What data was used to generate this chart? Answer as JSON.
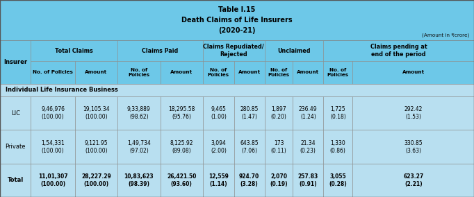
{
  "title_line1": "Table I.15",
  "title_line2": "Death Claims of Life Insurers",
  "title_line3": "(2020-21)",
  "amount_note": "(Amount in ₹crore)",
  "header_bg": "#6DC8E8",
  "light_bg": "#B8DFF0",
  "white_bg": "#FFFFFF",
  "section_header": "Individual Life Insurance Business",
  "rows": [
    {
      "insurer": "LIC",
      "bold": false,
      "values": [
        "9,46,976\n(100.00)",
        "19,105.34\n(100.00)",
        "9,33,889\n(98.62)",
        "18,295.58\n(95.76)",
        "9,465\n(1.00)",
        "280.85\n(1.47)",
        "1,897\n(0.20)",
        "236.49\n(1.24)",
        "1,725\n(0.18)",
        "292.42\n(1.53)"
      ]
    },
    {
      "insurer": "Private",
      "bold": false,
      "values": [
        "1,54,331\n(100.00)",
        "9,121.95\n(100.00)",
        "1,49,734\n(97.02)",
        "8,125.92\n(89.08)",
        "3,094\n(2.00)",
        "643.85\n(7.06)",
        "173\n(0.11)",
        "21.34\n(0.23)",
        "1,330\n(0.86)",
        "330.85\n(3.63)"
      ]
    },
    {
      "insurer": "Total",
      "bold": true,
      "values": [
        "11,01,307\n(100.00)",
        "28,227.29\n(100.00)",
        "10,83,623\n(98.39)",
        "26,421.50\n(93.60)",
        "12,559\n(1.14)",
        "924.70\n(3.28)",
        "2,070\n(0.19)",
        "257.83\n(0.91)",
        "3,055\n(0.28)",
        "623.27\n(2.21)"
      ]
    }
  ],
  "col_starts": [
    0.0,
    0.065,
    0.158,
    0.248,
    0.338,
    0.428,
    0.494,
    0.558,
    0.618,
    0.682,
    0.744
  ],
  "col_ends": [
    0.065,
    0.158,
    0.248,
    0.338,
    0.428,
    0.494,
    0.558,
    0.618,
    0.682,
    0.744,
    1.0
  ],
  "row_heights": {
    "title": 0.205,
    "grp_hdr": 0.105,
    "sub_hdr": 0.115,
    "sec_hdr": 0.065,
    "data_row": 0.17,
    "total_row": 0.17
  }
}
